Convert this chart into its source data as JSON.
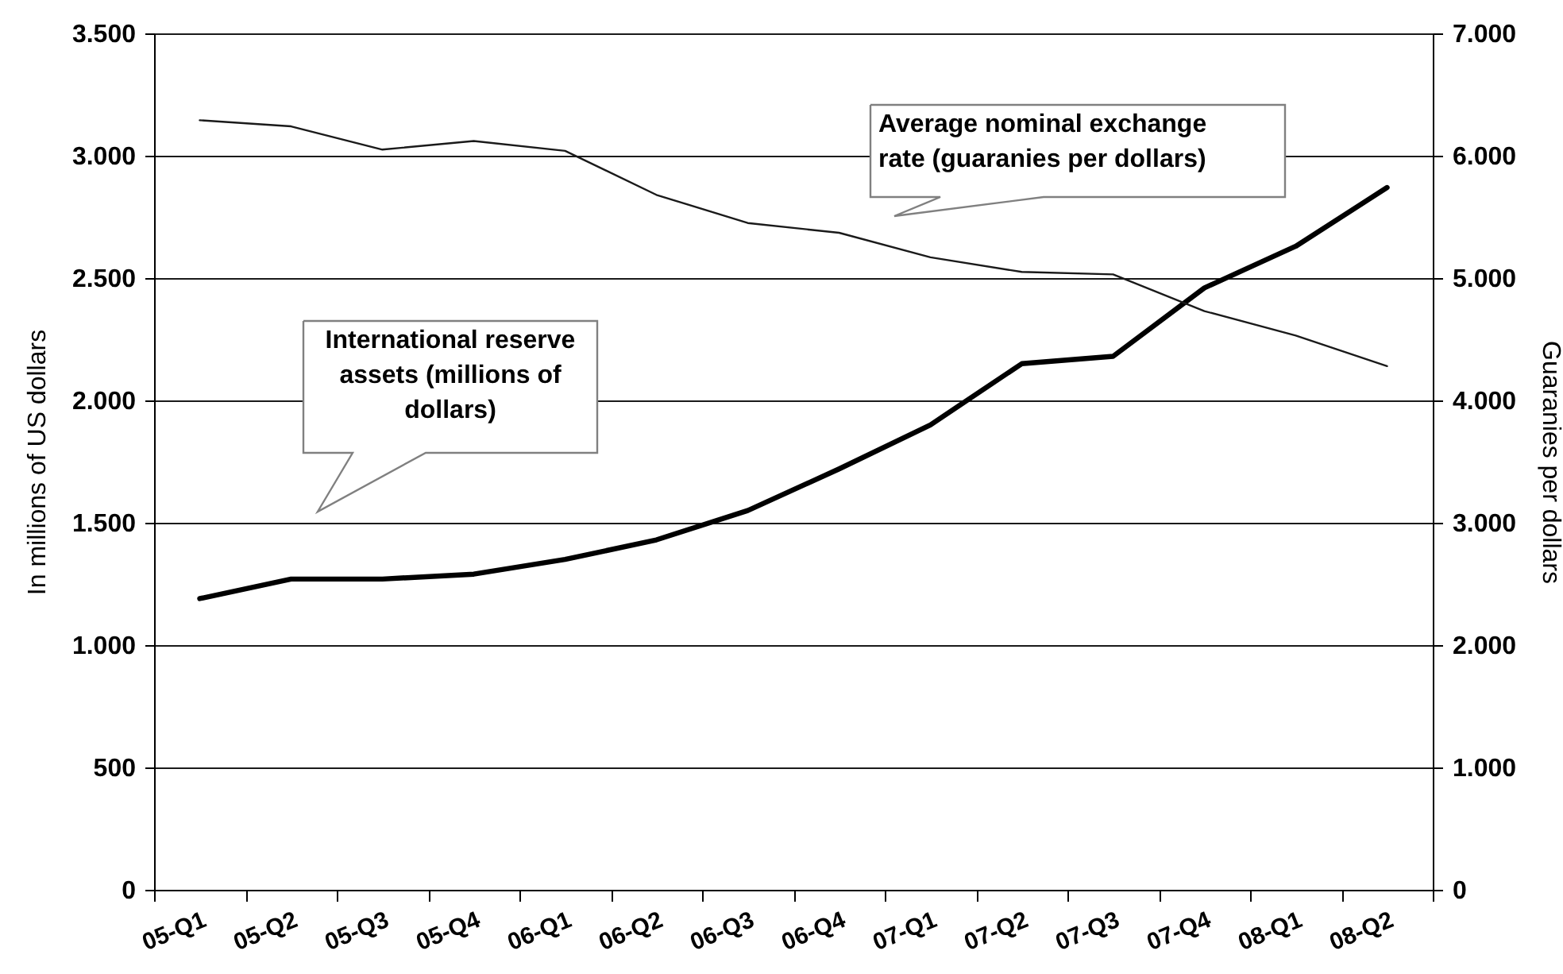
{
  "chart_data": {
    "type": "line",
    "categories": [
      "05-Q1",
      "05-Q2",
      "05-Q3",
      "05-Q4",
      "06-Q1",
      "06-Q2",
      "06-Q3",
      "06-Q4",
      "07-Q1",
      "07-Q2",
      "07-Q3",
      "07-Q4",
      "08-Q1",
      "08-Q2"
    ],
    "series": [
      {
        "color": "#000000",
        "values": [
          1190,
          1270,
          1270,
          1290,
          1350,
          1430,
          1550,
          1720,
          1900,
          2150,
          2180,
          2460,
          2630,
          2870
        ]
      },
      {
        "color": "#1a1a1a",
        "axis": "y2",
        "values": [
          6290,
          6240,
          6050,
          6120,
          6040,
          5680,
          5450,
          5370,
          5170,
          5050,
          5030,
          4730,
          4530,
          4280
        ]
      }
    ],
    "annotations": [
      "International reserve assets (millions of dollars)",
      "Average nominal exchange rate (guaranies per dollars)"
    ],
    "ylabel": "In millions of US dollars",
    "y2label": "Guaranies per dollars",
    "ylim": [
      0,
      3500
    ],
    "yticks": [
      0,
      500,
      {
        "value": 1000,
        "label": "1.000"
      },
      {
        "value": 1500,
        "label": "1.500"
      },
      {
        "value": 2000,
        "label": "2.000"
      },
      {
        "value": 2500,
        "label": "2.500"
      },
      {
        "value": 3000,
        "label": "3.000"
      },
      {
        "value": 3500,
        "label": "3.500"
      }
    ],
    "y2lim": [
      0,
      7000
    ],
    "y2ticks": [
      0,
      {
        "value": 1000,
        "label": "1.000"
      },
      {
        "value": 2000,
        "label": "2.000"
      },
      {
        "value": 3000,
        "label": "3.000"
      },
      {
        "value": 4000,
        "label": "4.000"
      },
      {
        "value": 5000,
        "label": "5.000"
      },
      {
        "value": 6000,
        "label": "6.000"
      },
      {
        "value": 7000,
        "label": "7.000"
      }
    ],
    "grid": "y"
  }
}
